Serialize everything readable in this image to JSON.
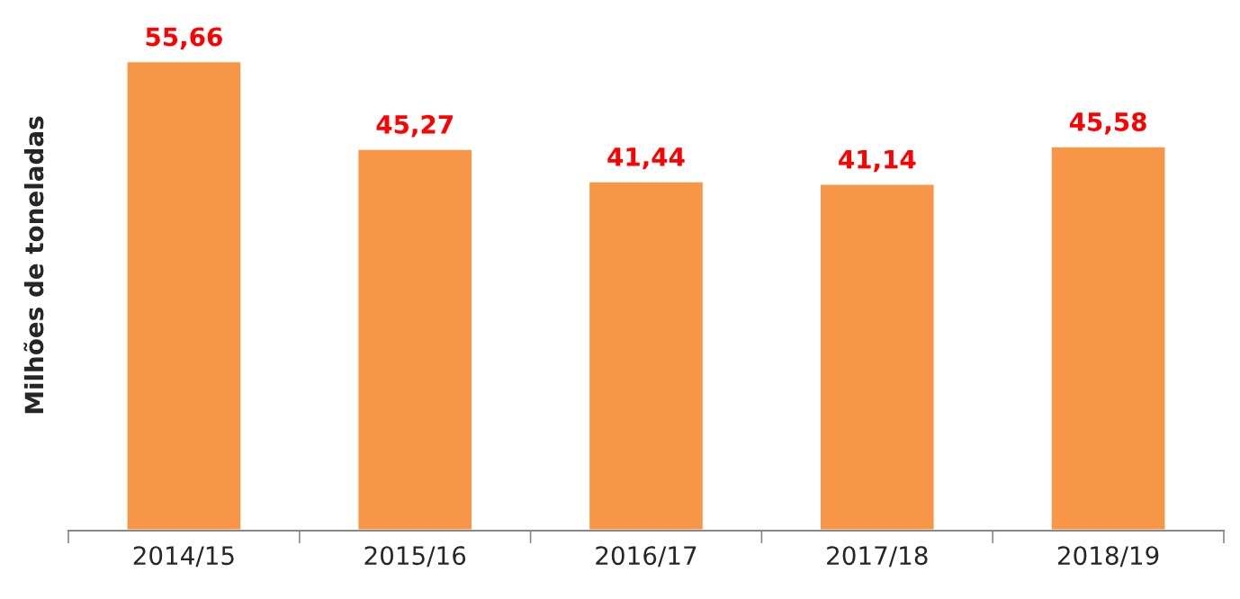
{
  "chart_data": {
    "type": "bar",
    "ylabel": "Milhões de toneladas",
    "categories": [
      "2014/15",
      "2015/16",
      "2016/17",
      "2017/18",
      "2018/19"
    ],
    "values": [
      55.66,
      45.27,
      41.44,
      41.14,
      45.58
    ],
    "color": "#f79646",
    "value_labels": [
      "55,66",
      "45,27",
      "41,44",
      "41,14",
      "45,58"
    ],
    "grid": false,
    "legend": false
  }
}
